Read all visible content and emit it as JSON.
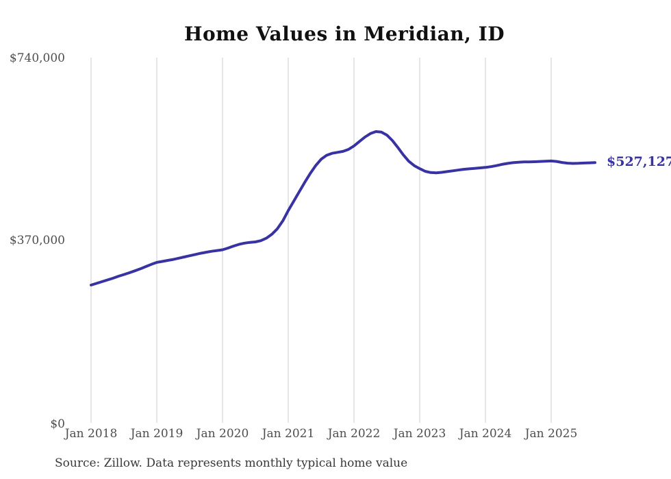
{
  "title": "Home Values in Meridian, ID",
  "source_note": "Source: Zillow. Data represents monthly typical home value",
  "end_label": "$527,127",
  "colors": {
    "line": "#3832a2",
    "grid": "#cccccc",
    "axis_text": "#4d4d4d",
    "title_text": "#111111",
    "source_text": "#383838",
    "end_label_text": "#3832a2"
  },
  "chart_data": {
    "type": "line",
    "title": "Home Values in Meridian, ID",
    "xlabel": "",
    "ylabel": "",
    "x_unit": "month",
    "x_start": "Jan 2018",
    "x_end": "Sep 2025",
    "x_tick_labels": [
      "Jan 2018",
      "Jan 2019",
      "Jan 2020",
      "Jan 2021",
      "Jan 2022",
      "Jan 2023",
      "Jan 2024",
      "Jan 2025"
    ],
    "y_ticks": [
      0,
      370000,
      740000
    ],
    "y_tick_labels": [
      "$0",
      "$370,000",
      "$740,000"
    ],
    "ylim": [
      0,
      740000
    ],
    "grid": "vertical-only",
    "legend": "none",
    "latest_value": 527127,
    "series": [
      {
        "name": "Typical home value",
        "values": [
          279000,
          282500,
          286000,
          289500,
          293000,
          297000,
          300500,
          304000,
          308000,
          312000,
          316500,
          321000,
          325000,
          327000,
          329000,
          331000,
          333500,
          336000,
          338500,
          341000,
          343500,
          345500,
          347500,
          349000,
          350500,
          354000,
          358000,
          361500,
          364000,
          365500,
          366500,
          369000,
          374000,
          382000,
          393000,
          409000,
          430000,
          449000,
          468000,
          487000,
          505000,
          521000,
          534000,
          542000,
          546000,
          548000,
          550000,
          554000,
          561000,
          570000,
          579000,
          586000,
          590000,
          589000,
          583000,
          572000,
          558000,
          543000,
          530000,
          521000,
          515000,
          509500,
          507000,
          506500,
          507500,
          509000,
          510500,
          512000,
          513500,
          514500,
          515500,
          516500,
          517500,
          519000,
          521000,
          523500,
          525500,
          527000,
          528000,
          528500,
          528500,
          529000,
          529500,
          530000,
          530500,
          529500,
          527500,
          526000,
          525500,
          525800,
          526300,
          526800,
          527127
        ]
      }
    ]
  }
}
